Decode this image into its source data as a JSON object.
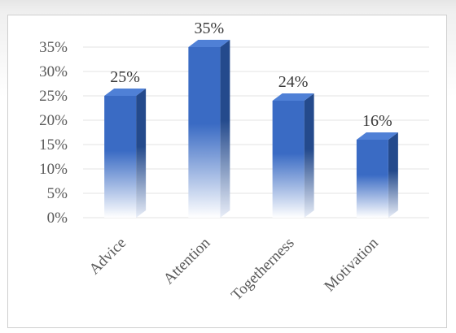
{
  "chart_data": {
    "type": "bar",
    "style": "3d-column",
    "categories": [
      "Advice",
      "Attention",
      "Togetherness",
      "Motivation"
    ],
    "values": [
      25,
      35,
      24,
      16
    ],
    "data_labels": [
      "25%",
      "35%",
      "24%",
      "16%"
    ],
    "title": "",
    "xlabel": "",
    "ylabel": "",
    "ylim": [
      0,
      35
    ],
    "yticks": [
      0,
      5,
      10,
      15,
      20,
      25,
      30,
      35
    ],
    "ytick_labels": [
      "0%",
      "5%",
      "10%",
      "15%",
      "20%",
      "25%",
      "30%",
      "35%"
    ],
    "grid": true,
    "legend": "none",
    "colors": {
      "bar_front": "#3a6bc4",
      "bar_side": "#244a8c",
      "bar_top": "#4f80d6",
      "gridline": "#e3e3e3",
      "text": "#5a5a5a"
    }
  }
}
